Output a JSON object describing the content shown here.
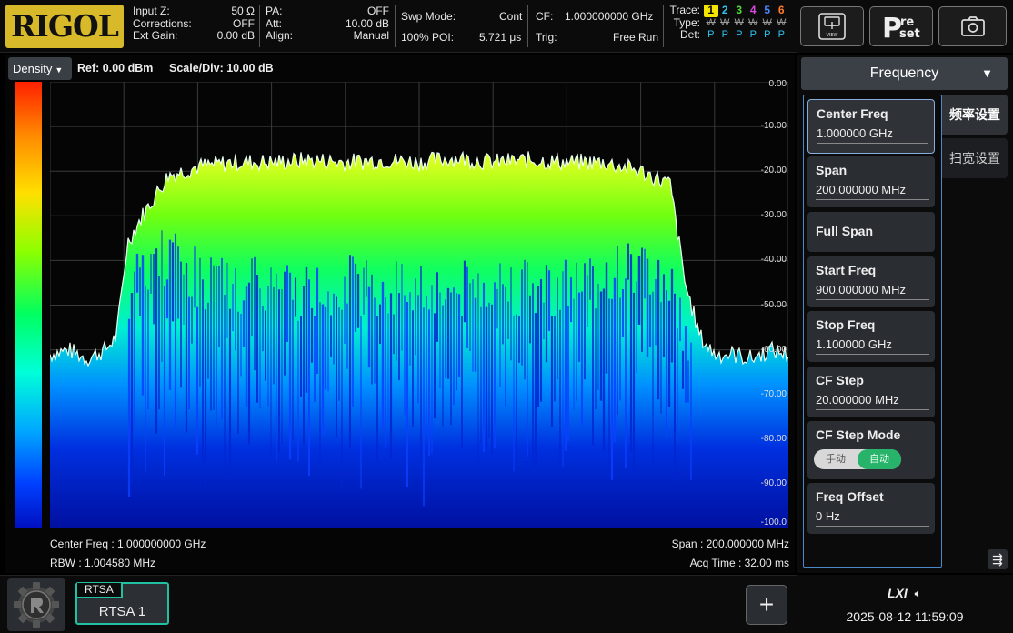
{
  "header": {
    "logo": "RIGOL",
    "group1": [
      {
        "label": "Input Z:",
        "value": "50 Ω"
      },
      {
        "label": "Corrections:",
        "value": "OFF"
      },
      {
        "label": "Ext Gain:",
        "value": "0.00 dB"
      }
    ],
    "group2": [
      {
        "label": "PA:",
        "value": "OFF"
      },
      {
        "label": "Att:",
        "value": "10.00 dB"
      },
      {
        "label": "Align:",
        "value": "Manual"
      }
    ],
    "swp_mode_label": "Swp Mode:",
    "swp_mode_value": "Cont",
    "poi_label": "100% POI:",
    "poi_value": "5.721 μs",
    "cf_label": "CF:",
    "cf_value": "1.000000000 GHz",
    "trig_label": "Trig:",
    "trig_value": "Free Run",
    "trace": {
      "trace_label": "Trace:",
      "type_label": "Type:",
      "det_label": "Det:",
      "numbers": [
        "1",
        "2",
        "3",
        "4",
        "5",
        "6"
      ],
      "number_colors": [
        "#000000",
        "#2ec3ef",
        "#4ddc3a",
        "#d94ce0",
        "#4c84ff",
        "#ff7a2a"
      ],
      "types": [
        "W",
        "W",
        "W",
        "W",
        "W",
        "W"
      ],
      "dets": [
        "P",
        "P",
        "P",
        "P",
        "P",
        "P"
      ]
    }
  },
  "top_buttons": [
    {
      "name": "view-button",
      "icon": "view-icon",
      "label": "VIEW"
    },
    {
      "name": "preset-button",
      "icon": "preset-icon",
      "label_big": "P",
      "label_small_top": "re",
      "label_small_bottom": "set"
    },
    {
      "name": "screenshot-button",
      "icon": "camera-icon"
    }
  ],
  "plot": {
    "density_label": "Density",
    "ref_text": "Ref: 0.00 dBm",
    "scale_text": "Scale/Div: 10.00 dB",
    "y_ticks": [
      "0.00",
      "-10.00",
      "-20.00",
      "-30.00",
      "-40.00",
      "-50.00",
      "-60.00",
      "-70.00",
      "-80.00",
      "-90.00",
      "-100.0"
    ],
    "center_freq_text": "Center Freq : 1.000000000 GHz",
    "rbw_text": "RBW : 1.004580 MHz",
    "span_text": "Span : 200.000000 MHz",
    "acq_text": "Acq Time : 32.00 ms"
  },
  "chart_data": {
    "type": "area",
    "ylabel": "",
    "xlabel": "",
    "x_unit": "MHz",
    "xlim": [
      900,
      1100
    ],
    "ylim": [
      -100,
      0
    ],
    "y_unit": "dBm",
    "grid": true,
    "series": [
      {
        "x": [
          900,
          905,
          910,
          915,
          918,
          921,
          925,
          932,
          940,
          950,
          960,
          970,
          980,
          990,
          1000,
          1010,
          1020,
          1030,
          1040,
          1050,
          1060,
          1068,
          1072,
          1076,
          1080,
          1085,
          1090,
          1095,
          1100
        ],
        "y": [
          -61,
          -60,
          -62,
          -60,
          -57,
          -36,
          -30,
          -21,
          -19,
          -18,
          -18,
          -17.5,
          -18,
          -17.5,
          -18,
          -17,
          -18,
          -17.5,
          -18,
          -18,
          -20,
          -23,
          -45,
          -57,
          -61,
          -61,
          -62,
          -60,
          -61
        ],
        "floor": [
          -70,
          -68,
          -72,
          -69,
          -64,
          -52,
          -44,
          -40,
          -45,
          -48,
          -47,
          -49,
          -46,
          -48,
          -47,
          -49,
          -46,
          -48,
          -47,
          -45,
          -43,
          -47,
          -58,
          -66,
          -70,
          -72,
          -71,
          -70,
          -72
        ]
      }
    ]
  },
  "menu": {
    "header": "Frequency",
    "tabs": [
      "频率设置",
      "扫宽设置"
    ],
    "keys": [
      {
        "name": "center-freq",
        "title": "Center Freq",
        "value": "1.000000 GHz",
        "active": true
      },
      {
        "name": "span",
        "title": "Span",
        "value": "200.000000 MHz"
      },
      {
        "name": "full-span",
        "title": "Full Span"
      },
      {
        "name": "start-freq",
        "title": "Start Freq",
        "value": "900.000000 MHz"
      },
      {
        "name": "stop-freq",
        "title": "Stop Freq",
        "value": "1.100000 GHz"
      },
      {
        "name": "cf-step",
        "title": "CF Step",
        "value": "20.000000 MHz"
      },
      {
        "name": "cf-step-mode",
        "title": "CF Step Mode",
        "options": [
          "手动",
          "自动"
        ],
        "selected": "自动"
      },
      {
        "name": "freq-offset",
        "title": "Freq Offset",
        "value": "0 Hz"
      }
    ]
  },
  "bottom": {
    "tab_label": "RTSA",
    "tab_name": "RTSA 1",
    "add_label": "+",
    "lxi": "LXI",
    "datetime": "2025-08-12 11:59:09"
  }
}
